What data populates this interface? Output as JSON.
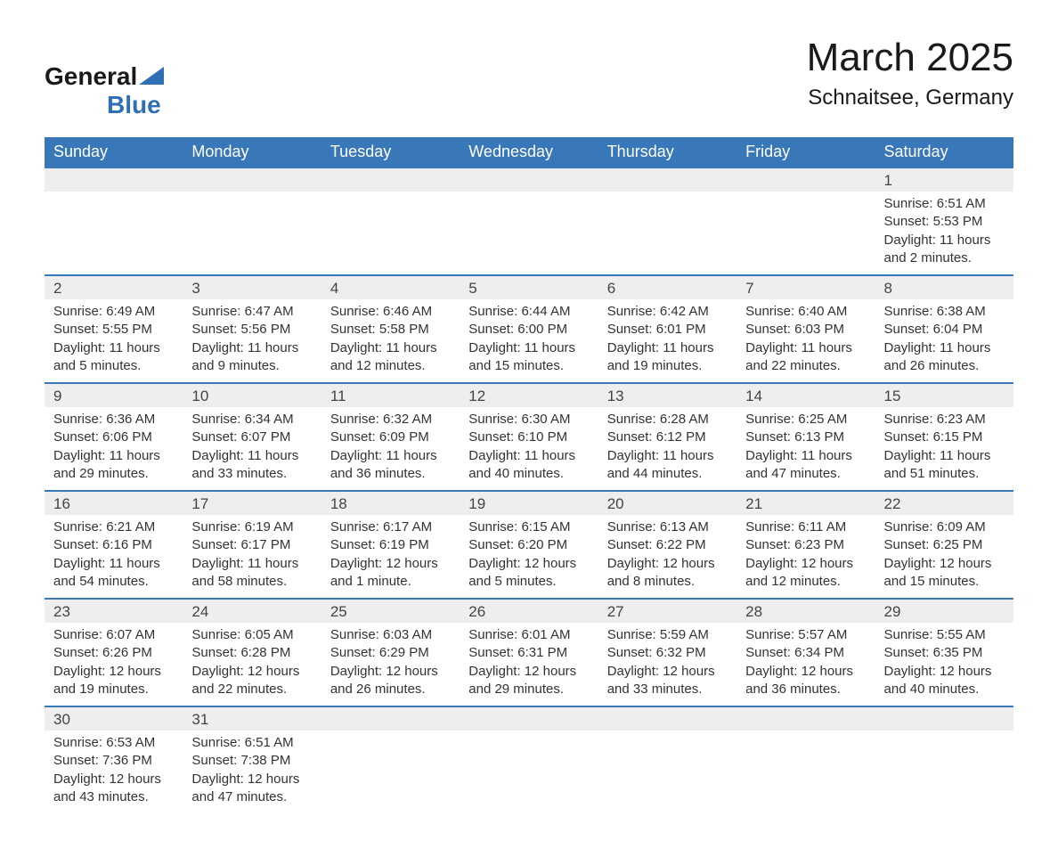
{
  "brand": {
    "name_part1": "General",
    "name_part2": "Blue",
    "text_color": "#1a1a1a",
    "accent_color": "#2f6fb5"
  },
  "title": "March 2025",
  "location": "Schnaitsee, Germany",
  "colors": {
    "header_bg": "#3878b8",
    "header_text": "#ffffff",
    "daynum_bg": "#eeeeee",
    "row_border": "#3878b8",
    "body_text": "#333333",
    "background": "#ffffff"
  },
  "fonts": {
    "title_size": 44,
    "location_size": 24,
    "header_size": 18,
    "daynum_size": 17,
    "detail_size": 15
  },
  "weekdays": [
    "Sunday",
    "Monday",
    "Tuesday",
    "Wednesday",
    "Thursday",
    "Friday",
    "Saturday"
  ],
  "calendar": {
    "type": "table",
    "columns": 7,
    "weeks": [
      [
        null,
        null,
        null,
        null,
        null,
        null,
        {
          "day": "1",
          "sunrise": "Sunrise: 6:51 AM",
          "sunset": "Sunset: 5:53 PM",
          "daylight": "Daylight: 11 hours and 2 minutes."
        }
      ],
      [
        {
          "day": "2",
          "sunrise": "Sunrise: 6:49 AM",
          "sunset": "Sunset: 5:55 PM",
          "daylight": "Daylight: 11 hours and 5 minutes."
        },
        {
          "day": "3",
          "sunrise": "Sunrise: 6:47 AM",
          "sunset": "Sunset: 5:56 PM",
          "daylight": "Daylight: 11 hours and 9 minutes."
        },
        {
          "day": "4",
          "sunrise": "Sunrise: 6:46 AM",
          "sunset": "Sunset: 5:58 PM",
          "daylight": "Daylight: 11 hours and 12 minutes."
        },
        {
          "day": "5",
          "sunrise": "Sunrise: 6:44 AM",
          "sunset": "Sunset: 6:00 PM",
          "daylight": "Daylight: 11 hours and 15 minutes."
        },
        {
          "day": "6",
          "sunrise": "Sunrise: 6:42 AM",
          "sunset": "Sunset: 6:01 PM",
          "daylight": "Daylight: 11 hours and 19 minutes."
        },
        {
          "day": "7",
          "sunrise": "Sunrise: 6:40 AM",
          "sunset": "Sunset: 6:03 PM",
          "daylight": "Daylight: 11 hours and 22 minutes."
        },
        {
          "day": "8",
          "sunrise": "Sunrise: 6:38 AM",
          "sunset": "Sunset: 6:04 PM",
          "daylight": "Daylight: 11 hours and 26 minutes."
        }
      ],
      [
        {
          "day": "9",
          "sunrise": "Sunrise: 6:36 AM",
          "sunset": "Sunset: 6:06 PM",
          "daylight": "Daylight: 11 hours and 29 minutes."
        },
        {
          "day": "10",
          "sunrise": "Sunrise: 6:34 AM",
          "sunset": "Sunset: 6:07 PM",
          "daylight": "Daylight: 11 hours and 33 minutes."
        },
        {
          "day": "11",
          "sunrise": "Sunrise: 6:32 AM",
          "sunset": "Sunset: 6:09 PM",
          "daylight": "Daylight: 11 hours and 36 minutes."
        },
        {
          "day": "12",
          "sunrise": "Sunrise: 6:30 AM",
          "sunset": "Sunset: 6:10 PM",
          "daylight": "Daylight: 11 hours and 40 minutes."
        },
        {
          "day": "13",
          "sunrise": "Sunrise: 6:28 AM",
          "sunset": "Sunset: 6:12 PM",
          "daylight": "Daylight: 11 hours and 44 minutes."
        },
        {
          "day": "14",
          "sunrise": "Sunrise: 6:25 AM",
          "sunset": "Sunset: 6:13 PM",
          "daylight": "Daylight: 11 hours and 47 minutes."
        },
        {
          "day": "15",
          "sunrise": "Sunrise: 6:23 AM",
          "sunset": "Sunset: 6:15 PM",
          "daylight": "Daylight: 11 hours and 51 minutes."
        }
      ],
      [
        {
          "day": "16",
          "sunrise": "Sunrise: 6:21 AM",
          "sunset": "Sunset: 6:16 PM",
          "daylight": "Daylight: 11 hours and 54 minutes."
        },
        {
          "day": "17",
          "sunrise": "Sunrise: 6:19 AM",
          "sunset": "Sunset: 6:17 PM",
          "daylight": "Daylight: 11 hours and 58 minutes."
        },
        {
          "day": "18",
          "sunrise": "Sunrise: 6:17 AM",
          "sunset": "Sunset: 6:19 PM",
          "daylight": "Daylight: 12 hours and 1 minute."
        },
        {
          "day": "19",
          "sunrise": "Sunrise: 6:15 AM",
          "sunset": "Sunset: 6:20 PM",
          "daylight": "Daylight: 12 hours and 5 minutes."
        },
        {
          "day": "20",
          "sunrise": "Sunrise: 6:13 AM",
          "sunset": "Sunset: 6:22 PM",
          "daylight": "Daylight: 12 hours and 8 minutes."
        },
        {
          "day": "21",
          "sunrise": "Sunrise: 6:11 AM",
          "sunset": "Sunset: 6:23 PM",
          "daylight": "Daylight: 12 hours and 12 minutes."
        },
        {
          "day": "22",
          "sunrise": "Sunrise: 6:09 AM",
          "sunset": "Sunset: 6:25 PM",
          "daylight": "Daylight: 12 hours and 15 minutes."
        }
      ],
      [
        {
          "day": "23",
          "sunrise": "Sunrise: 6:07 AM",
          "sunset": "Sunset: 6:26 PM",
          "daylight": "Daylight: 12 hours and 19 minutes."
        },
        {
          "day": "24",
          "sunrise": "Sunrise: 6:05 AM",
          "sunset": "Sunset: 6:28 PM",
          "daylight": "Daylight: 12 hours and 22 minutes."
        },
        {
          "day": "25",
          "sunrise": "Sunrise: 6:03 AM",
          "sunset": "Sunset: 6:29 PM",
          "daylight": "Daylight: 12 hours and 26 minutes."
        },
        {
          "day": "26",
          "sunrise": "Sunrise: 6:01 AM",
          "sunset": "Sunset: 6:31 PM",
          "daylight": "Daylight: 12 hours and 29 minutes."
        },
        {
          "day": "27",
          "sunrise": "Sunrise: 5:59 AM",
          "sunset": "Sunset: 6:32 PM",
          "daylight": "Daylight: 12 hours and 33 minutes."
        },
        {
          "day": "28",
          "sunrise": "Sunrise: 5:57 AM",
          "sunset": "Sunset: 6:34 PM",
          "daylight": "Daylight: 12 hours and 36 minutes."
        },
        {
          "day": "29",
          "sunrise": "Sunrise: 5:55 AM",
          "sunset": "Sunset: 6:35 PM",
          "daylight": "Daylight: 12 hours and 40 minutes."
        }
      ],
      [
        {
          "day": "30",
          "sunrise": "Sunrise: 6:53 AM",
          "sunset": "Sunset: 7:36 PM",
          "daylight": "Daylight: 12 hours and 43 minutes."
        },
        {
          "day": "31",
          "sunrise": "Sunrise: 6:51 AM",
          "sunset": "Sunset: 7:38 PM",
          "daylight": "Daylight: 12 hours and 47 minutes."
        },
        null,
        null,
        null,
        null,
        null
      ]
    ]
  }
}
